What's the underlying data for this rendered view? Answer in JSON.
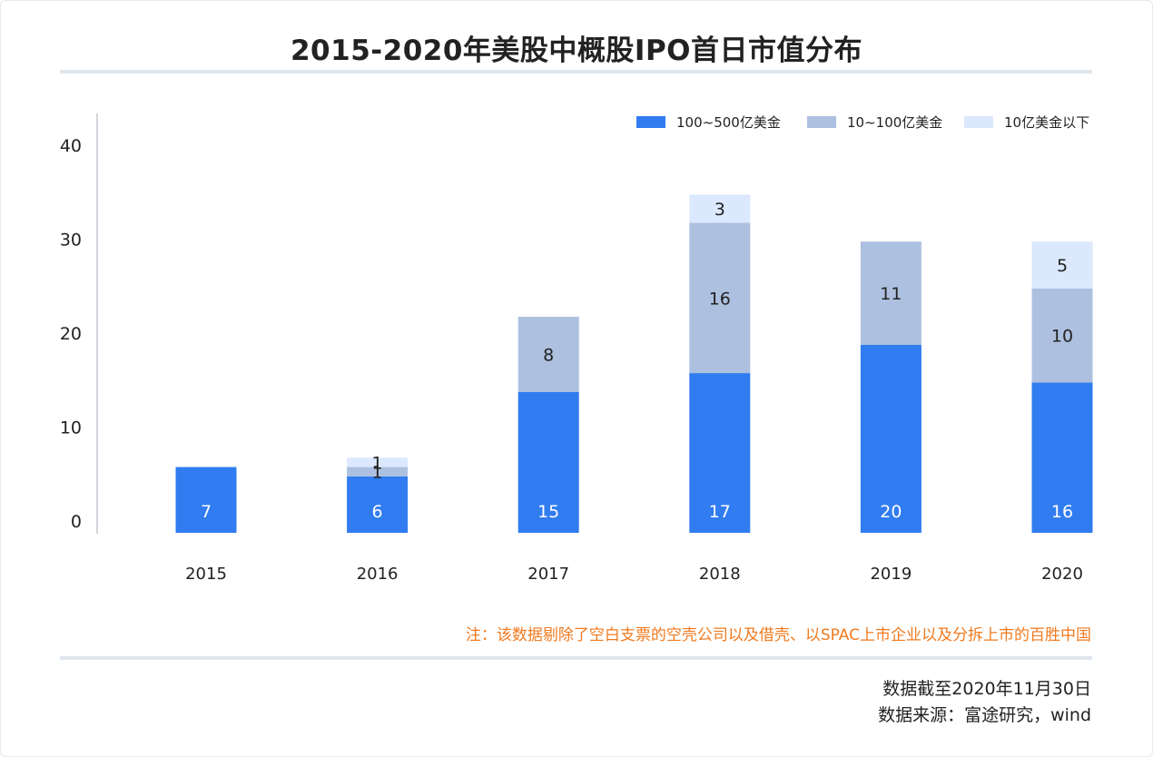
{
  "title": "2015-2020年美股中概股IPO首日市值分布",
  "note": "注：该数据剔除了空白支票的空壳公司以及借壳、以SPAC上市企业以及分拆上市的百胜中国",
  "footer": {
    "date_line": "数据截至2020年11月30日",
    "source_line": "数据来源：富途研究，wind"
  },
  "colors": {
    "series_large": "#307cf0",
    "series_mid": "#adc0df",
    "series_small": "#dbe8fd",
    "axis": "#d0d4da",
    "rule": "#dfe6ee",
    "note": "#f07a1f"
  },
  "chart_data": {
    "type": "bar",
    "stacked": true,
    "title": "2015-2020年美股中概股IPO首日市值分布",
    "xlabel": "",
    "ylabel": "",
    "ylim": [
      0,
      45
    ],
    "yticks": [
      0,
      10,
      20,
      30,
      40
    ],
    "grid": false,
    "legend_position": "top-right",
    "categories": [
      "2015",
      "2016",
      "2017",
      "2018",
      "2019",
      "2020"
    ],
    "series": [
      {
        "name": "100~500亿美金",
        "color": "#307cf0",
        "label_color": "#ffffff",
        "values": [
          7,
          6,
          15,
          17,
          20,
          16
        ]
      },
      {
        "name": "10~100亿美金",
        "color": "#adc0df",
        "label_color": "#222222",
        "values": [
          0,
          1,
          8,
          16,
          11,
          10
        ]
      },
      {
        "name": "10亿美金以下",
        "color": "#dbe8fd",
        "label_color": "#222222",
        "values": [
          0,
          1,
          0,
          3,
          0,
          5
        ]
      }
    ]
  }
}
